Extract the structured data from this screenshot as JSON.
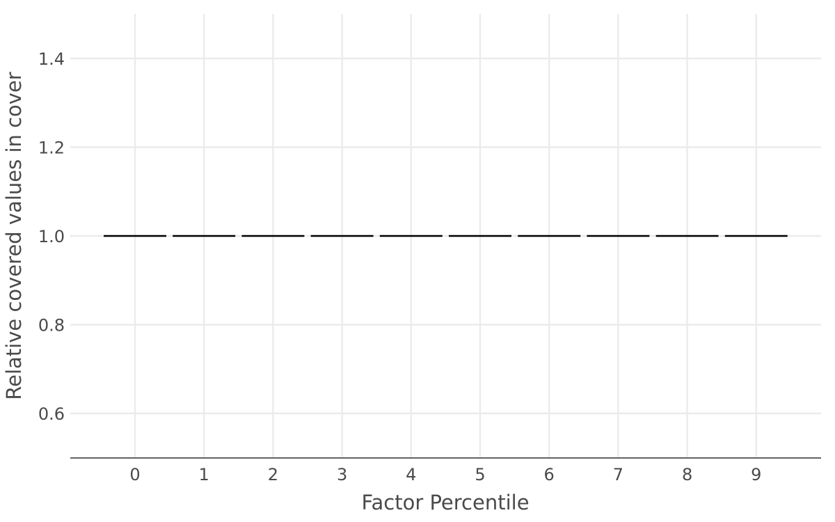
{
  "chart_data": {
    "type": "box",
    "title": "",
    "xlabel": "Factor Percentile",
    "ylabel": "Relative covered values in cover",
    "categories": [
      "0",
      "1",
      "2",
      "3",
      "4",
      "5",
      "6",
      "7",
      "8",
      "9"
    ],
    "values": [
      1.0,
      1.0,
      1.0,
      1.0,
      1.0,
      1.0,
      1.0,
      1.0,
      1.0,
      1.0
    ],
    "ylim": [
      0.5,
      1.5
    ],
    "yticks": [
      0.6,
      0.8,
      1.0,
      1.2,
      1.4
    ],
    "ytick_labels": [
      "0.6",
      "0.8",
      "1.0",
      "1.2",
      "1.4"
    ],
    "grid": true,
    "legend": "none",
    "colors": {
      "line": "#000000",
      "grid": "#ebebeb",
      "axis": "#4d4d4d",
      "text": "#4a4a4a"
    }
  }
}
